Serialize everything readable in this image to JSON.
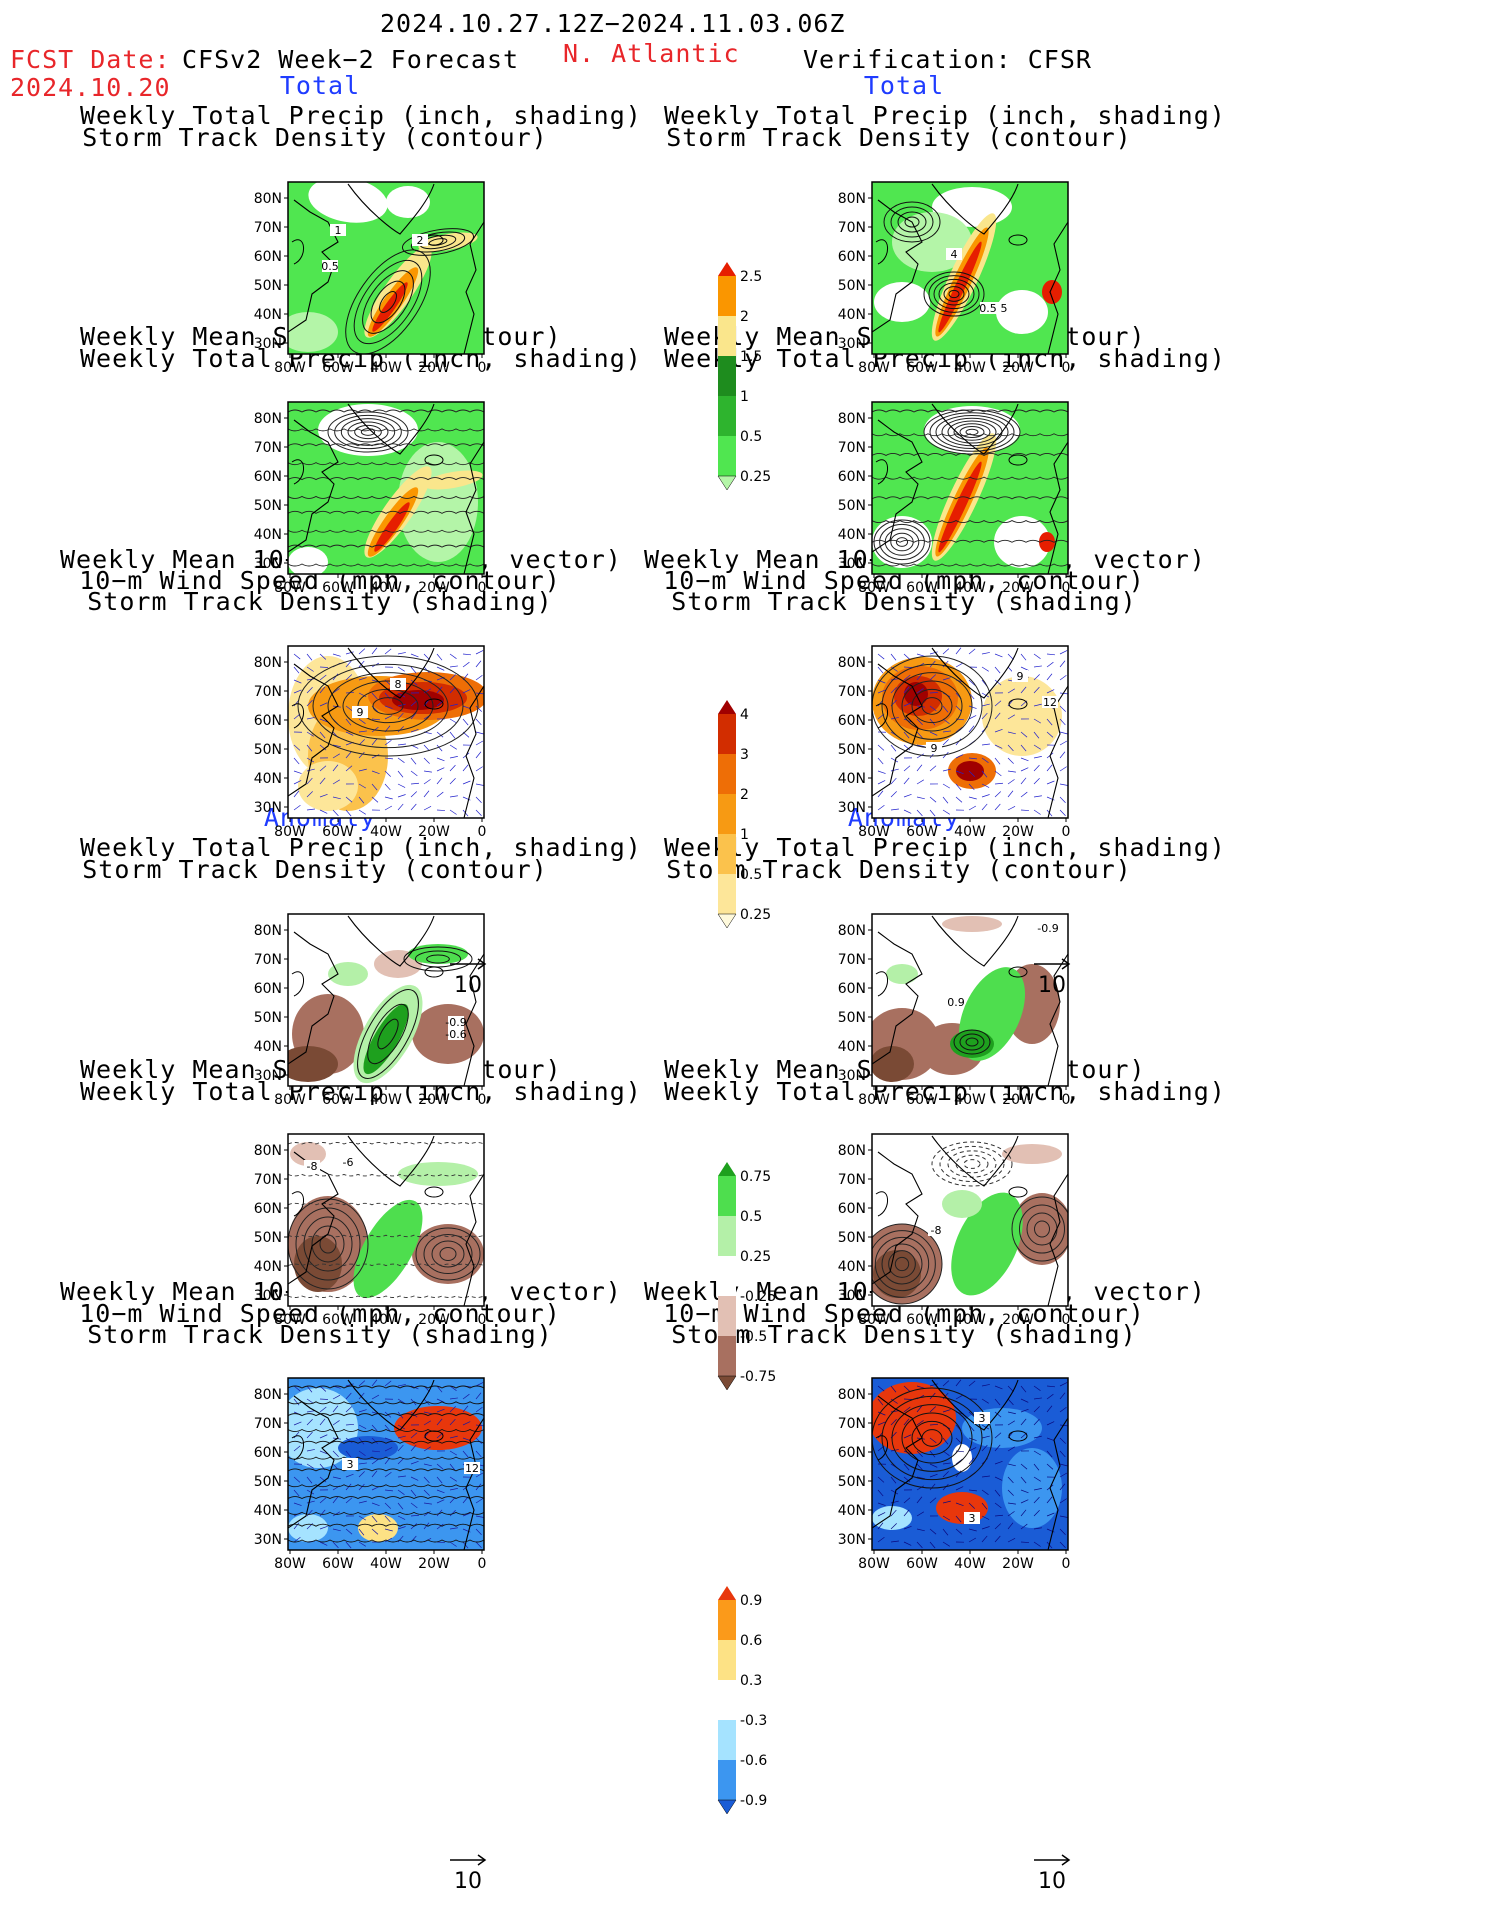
{
  "header": {
    "date_range": "2024.10.27.12Z−2024.11.03.06Z",
    "fcst_label": "FCST Date:",
    "fcst_date": "2024.10.20",
    "left_title": "CFSv2 Week−2 Forecast",
    "region": "N. Atlantic",
    "right_title": "Verification: CFSR"
  },
  "section_labels": {
    "total": "Total",
    "anomaly": "Anomaly"
  },
  "titles": {
    "precip_storm": [
      "Weekly Total Precip (inch, shading)",
      "Storm Track Density (contour)"
    ],
    "slp_precip": [
      "Weekly Mean SLP (hPa, contour)",
      "Weekly Total Precip (inch, shading)"
    ],
    "wind_storm": [
      "Weekly Mean 10−m Wind (mph, vector)",
      "10−m Wind Speed (mph, contour)",
      "Storm Track Density (shading)"
    ]
  },
  "axes": {
    "lat_ticks": [
      "80N",
      "70N",
      "60N",
      "50N",
      "40N",
      "30N"
    ],
    "lon_ticks": [
      "80W",
      "60W",
      "40W",
      "20W",
      "0"
    ]
  },
  "vector_reference": "10",
  "colorbars": {
    "precip_total": {
      "levels": [
        "0.25",
        "0.5",
        "1",
        "1.5",
        "2",
        "2.5"
      ],
      "colors": [
        "#b4f5a8",
        "#50e650",
        "#2eb42e",
        "#1e8c1e",
        "#fae68c",
        "#fa9600",
        "#e61e00"
      ]
    },
    "storm_total": {
      "levels": [
        "0.25",
        "0.5",
        "1",
        "2",
        "3",
        "4"
      ],
      "colors": [
        "#fffadc",
        "#fde699",
        "#fbc24c",
        "#f79a13",
        "#ee6e06",
        "#d22d00",
        "#a00000"
      ]
    },
    "precip_anom": {
      "levels": [
        "-0.75",
        "-0.5",
        "-0.25",
        "0.25",
        "0.5",
        "0.75"
      ],
      "colors": [
        "#7a4a35",
        "#a87060",
        "#e2c0b4",
        "#ffffff",
        "#b4f0a8",
        "#4ede4e",
        "#1ea01e"
      ]
    },
    "storm_anom": {
      "levels": [
        "-0.9",
        "-0.6",
        "-0.3",
        "0.3",
        "0.6",
        "0.9"
      ],
      "colors": [
        "#1a5cd6",
        "#3c96f0",
        "#a5e3ff",
        "#ffffff",
        "#fde285",
        "#fb9a1a",
        "#e8370c"
      ]
    }
  },
  "contour_labels": {
    "fc_total_precip": [
      "1",
      "2",
      "0.5"
    ],
    "ob_total_precip": [
      "4",
      "0.5",
      "5"
    ],
    "fc_total_wind": [
      "8",
      "9"
    ],
    "ob_total_wind": [
      "9",
      "12",
      "9"
    ],
    "fc_anom_precip": [
      "-0.9",
      "-0.6"
    ],
    "ob_anom_precip": [
      "-0.9",
      "0.9"
    ],
    "fc_anom_slp": [
      "-8",
      "-6"
    ],
    "ob_anom_slp": [
      "-8"
    ],
    "fc_anom_wind": [
      "3",
      "12"
    ],
    "ob_anom_wind": [
      "3",
      "3"
    ]
  }
}
